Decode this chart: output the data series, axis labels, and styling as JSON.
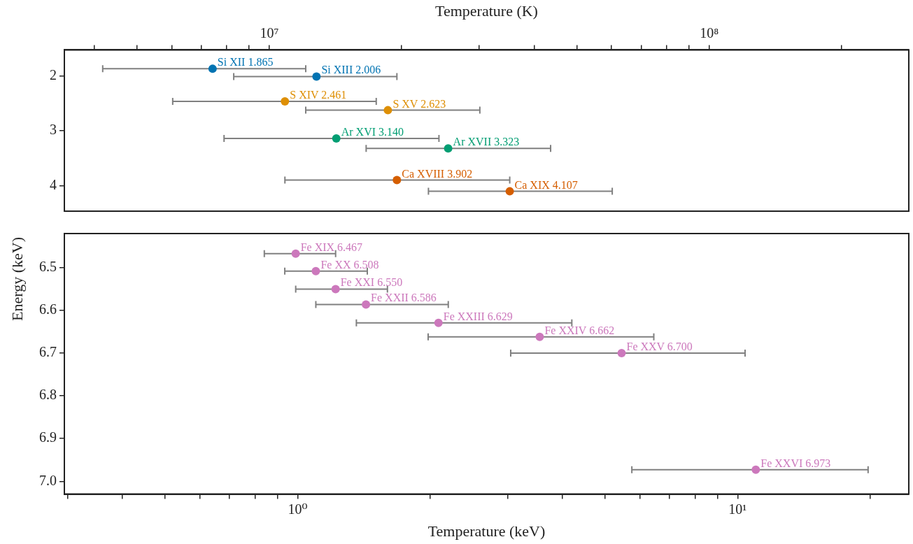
{
  "chart_data": [
    {
      "type": "scatter",
      "xlabel": "Temperature (K)",
      "ylabel": "Energy (keV)",
      "log": "x",
      "marker": "circle",
      "xlim": [
        3420000,
        284300000
      ],
      "xticks": [
        {
          "value": 4000000,
          "label": null
        },
        {
          "value": 5000000,
          "label": null
        },
        {
          "value": 6000000,
          "label": null
        },
        {
          "value": 7000000,
          "label": null
        },
        {
          "value": 8000000,
          "label": null
        },
        {
          "value": 9000000,
          "label": null
        },
        {
          "value": 10000000,
          "label": "10⁷"
        },
        {
          "value": 20000000,
          "label": null
        },
        {
          "value": 30000000,
          "label": null
        },
        {
          "value": 40000000,
          "label": null
        },
        {
          "value": 50000000,
          "label": null
        },
        {
          "value": 60000000,
          "label": null
        },
        {
          "value": 70000000,
          "label": null
        },
        {
          "value": 80000000,
          "label": null
        },
        {
          "value": 90000000,
          "label": null
        },
        {
          "value": 100000000,
          "label": "10⁸"
        },
        {
          "value": 200000000,
          "label": null
        }
      ],
      "ylim": [
        4.47,
        1.52
      ],
      "yticks": [
        2,
        3,
        4
      ],
      "series": [
        {
          "name": "Si XII 1.865",
          "color": "#0173b2",
          "x": [
            7430000
          ],
          "values": [
            1.865
          ],
          "xerrors": [
            [
              4180000,
              12100000
            ]
          ]
        },
        {
          "name": "Si XIII 2.006",
          "color": "#0173b2",
          "x": [
            12800000
          ],
          "values": [
            2.006
          ],
          "xerrors": [
            [
              8300000,
              19500000
            ]
          ]
        },
        {
          "name": "S XIV 2.461",
          "color": "#de8f05",
          "x": [
            10850000
          ],
          "values": [
            2.461
          ],
          "xerrors": [
            [
              6030000,
              17500000
            ]
          ]
        },
        {
          "name": "S XV 2.623",
          "color": "#de8f05",
          "x": [
            18600000
          ],
          "values": [
            2.623
          ],
          "xerrors": [
            [
              12100000,
              30100000
            ]
          ]
        },
        {
          "name": "Ar XVI 3.140",
          "color": "#029e73",
          "x": [
            14200000
          ],
          "values": [
            3.14
          ],
          "xerrors": [
            [
              7890000,
              24300000
            ]
          ]
        },
        {
          "name": "Ar XVII 3.323",
          "color": "#029e73",
          "x": [
            25500000
          ],
          "values": [
            3.323
          ],
          "xerrors": [
            [
              16600000,
              43600000
            ]
          ]
        },
        {
          "name": "Ca XVIII 3.902",
          "color": "#d55e00",
          "x": [
            19500000
          ],
          "values": [
            3.902
          ],
          "xerrors": [
            [
              10850000,
              35200000
            ]
          ]
        },
        {
          "name": "Ca XIX 4.107",
          "color": "#d55e00",
          "x": [
            35200000
          ],
          "values": [
            4.107
          ],
          "xerrors": [
            [
              23000000,
              60200000
            ]
          ]
        }
      ]
    },
    {
      "type": "scatter",
      "xlabel": "Temperature (keV)",
      "log": "x",
      "marker": "circle",
      "xlim": [
        0.295,
        24.5
      ],
      "xticks": [
        {
          "value": 0.3,
          "label": null
        },
        {
          "value": 0.4,
          "label": null
        },
        {
          "value": 0.5,
          "label": null
        },
        {
          "value": 0.6,
          "label": null
        },
        {
          "value": 0.7,
          "label": null
        },
        {
          "value": 0.8,
          "label": null
        },
        {
          "value": 0.9,
          "label": null
        },
        {
          "value": 1,
          "label": "10⁰"
        },
        {
          "value": 2,
          "label": null
        },
        {
          "value": 3,
          "label": null
        },
        {
          "value": 4,
          "label": null
        },
        {
          "value": 5,
          "label": null
        },
        {
          "value": 6,
          "label": null
        },
        {
          "value": 7,
          "label": null
        },
        {
          "value": 8,
          "label": null
        },
        {
          "value": 9,
          "label": null
        },
        {
          "value": 10,
          "label": "10¹"
        },
        {
          "value": 20,
          "label": null
        }
      ],
      "ylim": [
        7.03,
        6.42
      ],
      "yticks": [
        6.5,
        6.6,
        6.7,
        6.8,
        6.9,
        {
          "value": 7,
          "label": "7.0"
        }
      ],
      "series": [
        {
          "name": "Fe XIX 6.467",
          "color": "#cc78bc",
          "x": [
            0.99
          ],
          "values": [
            6.467
          ],
          "xerrors": [
            [
              0.84,
              1.22
            ]
          ]
        },
        {
          "name": "Fe XX 6.508",
          "color": "#cc78bc",
          "x": [
            1.1
          ],
          "values": [
            6.508
          ],
          "xerrors": [
            [
              0.935,
              1.44
            ]
          ]
        },
        {
          "name": "Fe XXI 6.550",
          "color": "#cc78bc",
          "x": [
            1.22
          ],
          "values": [
            6.55
          ],
          "xerrors": [
            [
              0.99,
              1.6
            ]
          ]
        },
        {
          "name": "Fe XXII 6.586",
          "color": "#cc78bc",
          "x": [
            1.43
          ],
          "values": [
            6.586
          ],
          "xerrors": [
            [
              1.1,
              2.2
            ]
          ]
        },
        {
          "name": "Fe XXIII 6.629",
          "color": "#cc78bc",
          "x": [
            2.09
          ],
          "values": [
            6.629
          ],
          "xerrors": [
            [
              1.36,
              4.2
            ]
          ]
        },
        {
          "name": "Fe XXIV 6.662",
          "color": "#cc78bc",
          "x": [
            3.55
          ],
          "values": [
            6.662
          ],
          "xerrors": [
            [
              1.98,
              6.45
            ]
          ]
        },
        {
          "name": "Fe XXV 6.700",
          "color": "#cc78bc",
          "x": [
            5.45
          ],
          "values": [
            6.7
          ],
          "xerrors": [
            [
              3.05,
              10.4
            ]
          ]
        },
        {
          "name": "Fe XXVI 6.973",
          "color": "#cc78bc",
          "x": [
            11
          ],
          "values": [
            6.973
          ],
          "xerrors": [
            [
              5.75,
              19.8
            ]
          ]
        }
      ]
    }
  ]
}
